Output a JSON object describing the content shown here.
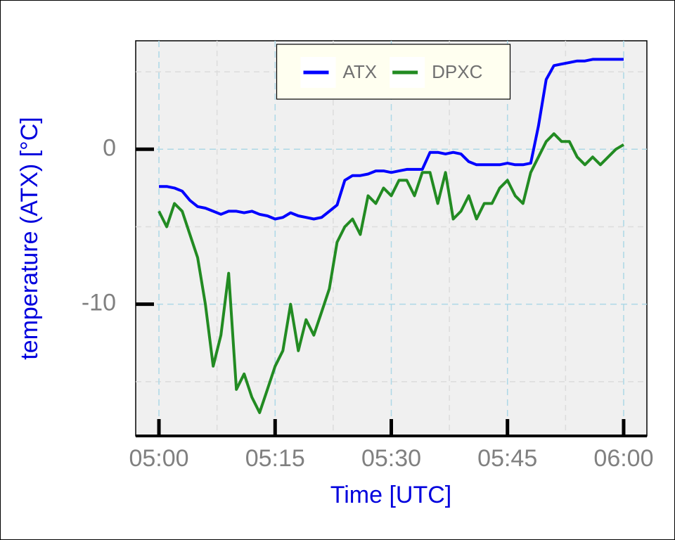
{
  "chart_data": {
    "type": "line",
    "x_label": "Time [UTC]",
    "y_label": "temperature (ATX)  [°C]",
    "x": [
      "05:00",
      "05:01",
      "05:02",
      "05:03",
      "05:04",
      "05:05",
      "05:06",
      "05:07",
      "05:08",
      "05:09",
      "05:10",
      "05:11",
      "05:12",
      "05:13",
      "05:14",
      "05:15",
      "05:16",
      "05:17",
      "05:18",
      "05:19",
      "05:20",
      "05:21",
      "05:22",
      "05:23",
      "05:24",
      "05:25",
      "05:26",
      "05:27",
      "05:28",
      "05:29",
      "05:30",
      "05:31",
      "05:32",
      "05:33",
      "05:34",
      "05:35",
      "05:36",
      "05:37",
      "05:38",
      "05:39",
      "05:40",
      "05:41",
      "05:42",
      "05:43",
      "05:44",
      "05:45",
      "05:46",
      "05:47",
      "05:48",
      "05:49",
      "05:50",
      "05:51",
      "05:52",
      "05:53",
      "05:54",
      "05:55",
      "05:56",
      "05:57",
      "05:58",
      "05:59",
      "06:00"
    ],
    "series": [
      {
        "name": "ATX",
        "color": "#0000ff",
        "values": [
          -2.4,
          -2.4,
          -2.5,
          -2.7,
          -3.3,
          -3.7,
          -3.8,
          -4.0,
          -4.2,
          -4.0,
          -4.0,
          -4.1,
          -4.0,
          -4.2,
          -4.3,
          -4.5,
          -4.4,
          -4.1,
          -4.3,
          -4.4,
          -4.5,
          -4.4,
          -4.0,
          -3.6,
          -2.0,
          -1.7,
          -1.7,
          -1.6,
          -1.4,
          -1.4,
          -1.5,
          -1.4,
          -1.3,
          -1.3,
          -1.3,
          -0.2,
          -0.2,
          -0.3,
          -0.2,
          -0.3,
          -0.8,
          -1.0,
          -1.0,
          -1.0,
          -1.0,
          -0.9,
          -1.0,
          -1.0,
          -0.9,
          1.5,
          4.5,
          5.4,
          5.5,
          5.6,
          5.7,
          5.7,
          5.8,
          5.8,
          5.8,
          5.8,
          5.8
        ]
      },
      {
        "name": "DPXC",
        "color": "#228b22",
        "values": [
          -4,
          -5,
          -3.5,
          -4,
          -5.5,
          -7,
          -10,
          -14,
          -12,
          -8,
          -15.5,
          -14.5,
          -16,
          -17,
          -15.5,
          -14,
          -13,
          -10,
          -13,
          -11,
          -12,
          -10.5,
          -9,
          -6,
          -5,
          -4.5,
          -5.5,
          -3,
          -3.5,
          -2.5,
          -3,
          -2,
          -2,
          -3,
          -1.5,
          -1.5,
          -3.5,
          -1.5,
          -4.5,
          -4,
          -3,
          -4.5,
          -3.5,
          -3.5,
          -2.5,
          -2,
          -3,
          -3.5,
          -1.5,
          -0.5,
          0.5,
          1,
          0.5,
          0.5,
          -0.5,
          -1,
          -0.5,
          -1,
          -0.5,
          0,
          0.3
        ]
      }
    ],
    "xlim": [
      "04:57",
      "06:03"
    ],
    "xticks": [
      "05:00",
      "05:15",
      "05:30",
      "05:45",
      "06:00"
    ],
    "ylim": [
      -18.5,
      7
    ],
    "yticks": [
      -10,
      0
    ],
    "grid": true,
    "legend": "top"
  }
}
